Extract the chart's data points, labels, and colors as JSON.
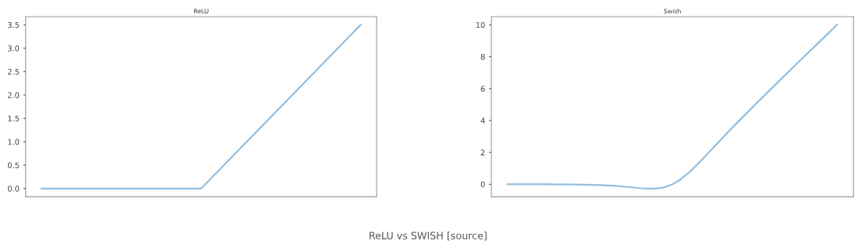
{
  "chart_data": [
    {
      "type": "line",
      "title": "ReLU",
      "categories": [
        null,
        null,
        null
      ],
      "series": [
        {
          "color": "#93bfdf",
          "values": [
            0,
            0,
            3.5
          ]
        }
      ],
      "ylim": [
        -0.175,
        3.675
      ],
      "yticks": [
        {
          "value": 0,
          "label": "0.0"
        },
        0.5,
        {
          "value": 1,
          "label": "1.0"
        },
        1.5,
        {
          "value": 2,
          "label": "2.0"
        },
        2.5,
        {
          "value": 3,
          "label": "3.0"
        },
        3.5
      ],
      "grid": false,
      "tick_labels": "y"
    },
    {
      "type": "line",
      "title": "Swish",
      "categories": [
        null,
        null,
        null,
        null,
        null,
        null,
        null,
        null,
        null,
        null,
        null,
        null,
        null,
        null,
        null,
        null,
        null,
        null,
        null,
        null,
        null,
        null,
        null,
        null,
        null,
        null,
        null,
        null,
        null,
        null,
        null,
        null,
        null,
        null,
        null,
        null,
        null,
        null,
        null,
        null,
        null
      ],
      "series": [
        {
          "color": "#93bfdf",
          "values": [
            0,
            0,
            0,
            0,
            0,
            0,
            -0.01,
            -0.01,
            -0.01,
            -0.02,
            -0.03,
            -0.05,
            -0.07,
            -0.1,
            -0.14,
            -0.19,
            -0.24,
            -0.27,
            -0.27,
            -0.19,
            0,
            0.31,
            0.73,
            1.23,
            1.76,
            2.31,
            2.86,
            3.4,
            3.93,
            4.45,
            4.97,
            5.48,
            5.99,
            6.49,
            6.99,
            7.5,
            8.0,
            8.5,
            9.0,
            9.5,
            10.0
          ]
        }
      ],
      "ylim": [
        -0.78,
        10.51
      ],
      "yticks": [
        0,
        2,
        4,
        6,
        8,
        10
      ],
      "grid": false,
      "tick_labels": "y",
      "annotations": [
        "ReLU vs SWISH [source]"
      ]
    }
  ]
}
